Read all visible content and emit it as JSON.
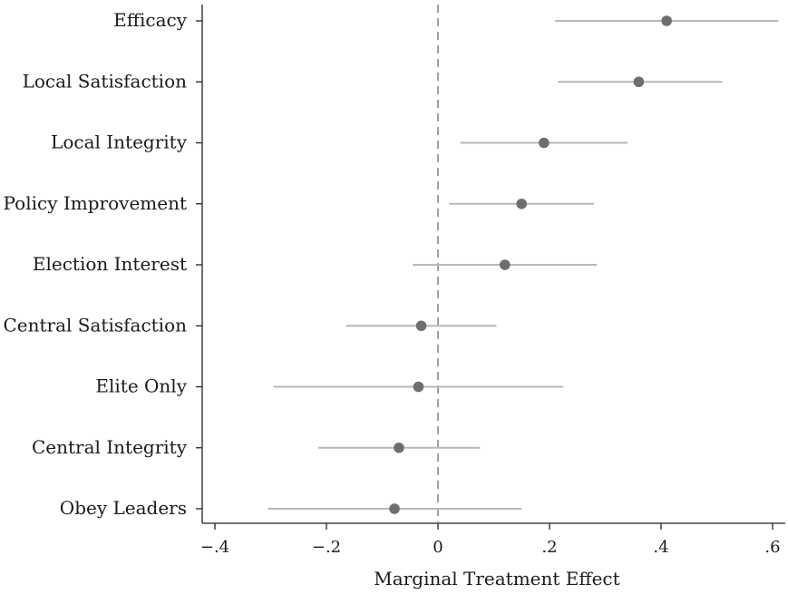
{
  "chart_data": {
    "type": "scatter",
    "subtype": "coefficient-plot",
    "xlabel": "Marginal Treatment Effect",
    "xlim": [
      -0.4,
      0.6
    ],
    "xticks": [
      -0.4,
      -0.2,
      0,
      0.2,
      0.4,
      0.6
    ],
    "xtick_labels": [
      "−.4",
      "−.2",
      "0",
      ".2",
      ".4",
      ".6"
    ],
    "reference_line": {
      "x": 0,
      "style": "dashed"
    },
    "grid": false,
    "colors": {
      "point": "#6e6e6e",
      "ci": "#b8b8b8",
      "axis": "#222222",
      "refline": "#8a8a8a"
    },
    "series": [
      {
        "points": [
          {
            "label": "Efficacy",
            "estimate": 0.41,
            "ci_low": 0.21,
            "ci_high": 0.61
          },
          {
            "label": "Local Satisfaction",
            "estimate": 0.36,
            "ci_low": 0.215,
            "ci_high": 0.51
          },
          {
            "label": "Local Integrity",
            "estimate": 0.19,
            "ci_low": 0.04,
            "ci_high": 0.34
          },
          {
            "label": "Policy Improvement",
            "estimate": 0.15,
            "ci_low": 0.02,
            "ci_high": 0.28
          },
          {
            "label": "Election Interest",
            "estimate": 0.12,
            "ci_low": -0.045,
            "ci_high": 0.285
          },
          {
            "label": "Central Satisfaction",
            "estimate": -0.03,
            "ci_low": -0.165,
            "ci_high": 0.105
          },
          {
            "label": "Elite Only",
            "estimate": -0.035,
            "ci_low": -0.295,
            "ci_high": 0.225
          },
          {
            "label": "Central Integrity",
            "estimate": -0.07,
            "ci_low": -0.215,
            "ci_high": 0.075
          },
          {
            "label": "Obey Leaders",
            "estimate": -0.078,
            "ci_low": -0.305,
            "ci_high": 0.15
          }
        ]
      }
    ]
  }
}
